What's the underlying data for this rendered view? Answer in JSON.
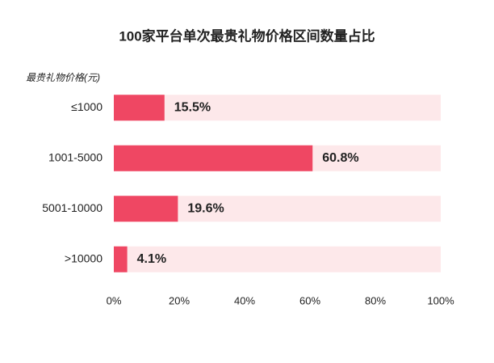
{
  "chart_data": {
    "type": "bar",
    "orientation": "horizontal",
    "title": "100家平台单次最贵礼物价格区间数量占比",
    "y_axis_label": "最贵礼物价格(元)",
    "categories": [
      "≤1000",
      "1001-5000",
      "5001-10000",
      ">10000"
    ],
    "values": [
      15.5,
      60.8,
      19.6,
      4.1
    ],
    "value_labels": [
      "15.5%",
      "60.8%",
      "19.6%",
      "4.1%"
    ],
    "color": "#ef4763",
    "xlim": [
      0,
      100
    ],
    "xticks": [
      {
        "value": 0,
        "label": "0%"
      },
      {
        "value": 20,
        "label": "20%"
      },
      {
        "value": 40,
        "label": "40%"
      },
      {
        "value": 60,
        "label": "60%"
      },
      {
        "value": 80,
        "label": "80%"
      },
      {
        "value": 100,
        "label": "100%"
      }
    ]
  }
}
